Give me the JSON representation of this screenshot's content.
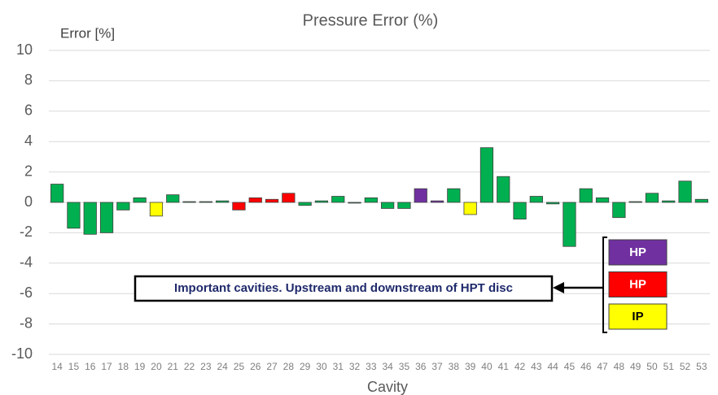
{
  "chart_data": {
    "type": "bar",
    "title": "Pressure Error (%)",
    "y_label": "Error [%]",
    "x_label": "Cavity",
    "categories": [
      "14",
      "15",
      "16",
      "17",
      "18",
      "19",
      "20",
      "21",
      "22",
      "23",
      "24",
      "25",
      "26",
      "27",
      "28",
      "29",
      "30",
      "31",
      "32",
      "33",
      "34",
      "35",
      "36",
      "37",
      "38",
      "39",
      "40",
      "41",
      "42",
      "43",
      "44",
      "45",
      "46",
      "47",
      "48",
      "49",
      "50",
      "51",
      "52",
      "53"
    ],
    "values": [
      1.2,
      -1.7,
      -2.1,
      -2.0,
      -0.5,
      0.3,
      -0.9,
      0.5,
      0.05,
      0.05,
      0.1,
      -0.5,
      0.3,
      0.2,
      0.6,
      -0.2,
      0.1,
      0.4,
      -0.05,
      0.3,
      -0.4,
      -0.4,
      0.9,
      0.1,
      0.9,
      -0.8,
      3.6,
      1.7,
      -1.1,
      0.4,
      -0.1,
      -2.9,
      0.9,
      0.3,
      -1.0,
      0.05,
      0.6,
      0.1,
      1.4,
      0.2
    ],
    "colors": [
      "#00b050",
      "#00b050",
      "#00b050",
      "#00b050",
      "#00b050",
      "#00b050",
      "#ffff00",
      "#00b050",
      "#00b050",
      "#00b050",
      "#00b050",
      "#ff0000",
      "#ff0000",
      "#ff0000",
      "#ff0000",
      "#00b050",
      "#00b050",
      "#00b050",
      "#00b050",
      "#00b050",
      "#00b050",
      "#00b050",
      "#7030a0",
      "#7030a0",
      "#00b050",
      "#ffff00",
      "#00b050",
      "#00b050",
      "#00b050",
      "#00b050",
      "#00b050",
      "#00b050",
      "#00b050",
      "#00b050",
      "#00b050",
      "#00b050",
      "#00b050",
      "#00b050",
      "#00b050",
      "#00b050"
    ],
    "ylim": [
      -10,
      10
    ],
    "yticks": [
      -10,
      -8,
      -6,
      -4,
      -2,
      0,
      2,
      4,
      6,
      8,
      10
    ],
    "grid": true,
    "annotation": "Important cavities. Upstream and downstream of HPT disc",
    "legend": [
      {
        "label": "HP",
        "color": "#7030a0"
      },
      {
        "label": "HP",
        "color": "#ff0000"
      },
      {
        "label": "IP",
        "color": "#ffff00"
      }
    ]
  }
}
